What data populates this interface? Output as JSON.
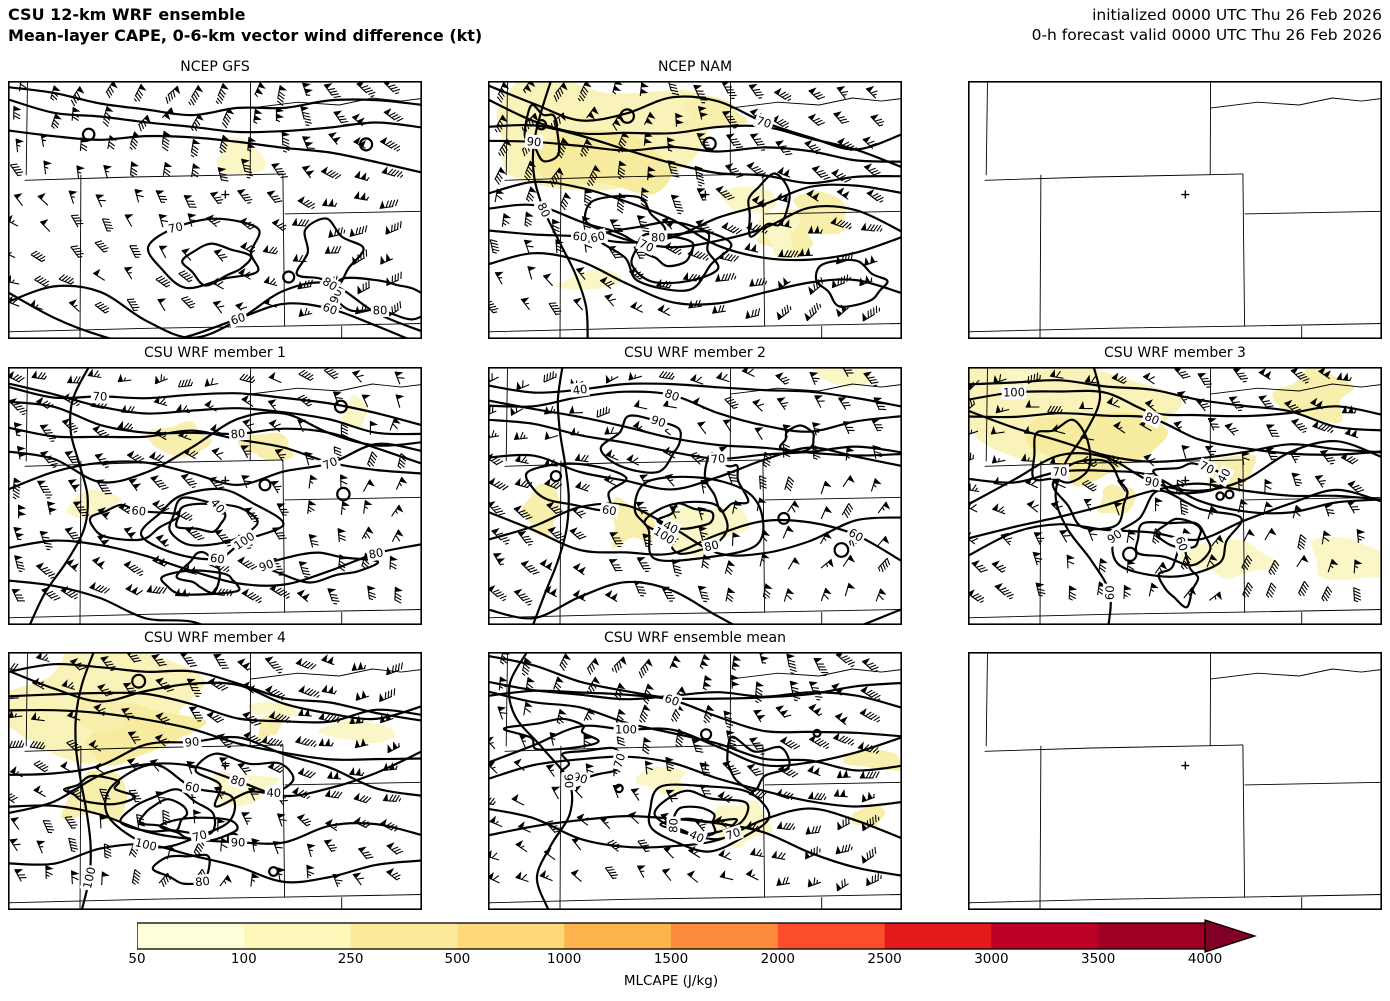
{
  "header": {
    "title_line1": "CSU 12-km WRF ensemble",
    "title_line2": "Mean-layer CAPE, 0-6-km vector wind difference (kt)",
    "init_line": "initialized 0000 UTC Thu 26 Feb 2026",
    "valid_line": "0-h forecast valid 0000 UTC Thu 26 Feb 2026"
  },
  "panels": [
    {
      "title": "NCEP GFS",
      "type": "filled",
      "complexity": "low",
      "shading": "light",
      "contour_labels": [
        90,
        70,
        80,
        60,
        60,
        80
      ]
    },
    {
      "title": "NCEP NAM",
      "type": "filled",
      "complexity": "high",
      "shading": "heavy",
      "contour_labels": [
        80,
        70,
        60,
        90,
        80,
        60,
        70
      ]
    },
    {
      "title": "",
      "type": "empty"
    },
    {
      "title": "CSU WRF member 1",
      "type": "filled",
      "complexity": "high",
      "shading": "medium",
      "contour_labels": [
        40,
        40,
        80,
        70,
        90,
        60,
        100,
        70,
        80,
        60
      ]
    },
    {
      "title": "CSU WRF member 2",
      "type": "filled",
      "complexity": "high",
      "shading": "medium",
      "contour_labels": [
        40,
        40,
        80,
        70,
        90,
        60,
        100,
        80,
        60
      ]
    },
    {
      "title": "CSU WRF member 3",
      "type": "filled",
      "complexity": "high",
      "shading": "heavy",
      "contour_labels": [
        40,
        70,
        90,
        100,
        60,
        80,
        90,
        60,
        70
      ]
    },
    {
      "title": "CSU WRF member 4",
      "type": "filled",
      "complexity": "high",
      "shading": "heavy",
      "contour_labels": [
        70,
        90,
        40,
        100,
        60,
        80,
        90,
        100,
        80
      ]
    },
    {
      "title": "CSU WRF ensemble mean",
      "type": "filled",
      "complexity": "high",
      "shading": "medium",
      "contour_labels": [
        40,
        90,
        100,
        70,
        60,
        80,
        90,
        70
      ]
    },
    {
      "title": "",
      "type": "empty"
    }
  ],
  "colorbar": {
    "label": "MLCAPE (J/kg)",
    "ticks": [
      "50",
      "100",
      "250",
      "500",
      "1000",
      "1500",
      "2000",
      "2500",
      "3000",
      "3500",
      "4000"
    ],
    "colors": [
      "#ffffd9",
      "#fff7b9",
      "#feea9b",
      "#fed97a",
      "#feb24c",
      "#fd8d3c",
      "#fc4e2a",
      "#e31a1c",
      "#bd0026",
      "#a00026"
    ],
    "arrow_color": "#800026"
  },
  "chart_data": {
    "type": "heatmap",
    "title": "CSU 12-km WRF ensemble — Mean-layer CAPE, 0-6-km vector wind difference (kt)",
    "initialized": "0000 UTC Thu 26 Feb 2026",
    "valid": "0000 UTC Thu 26 Feb 2026",
    "forecast_hour": 0,
    "grid": {
      "rows": 3,
      "cols": 3
    },
    "panels": [
      "NCEP GFS",
      "NCEP NAM",
      "",
      "CSU WRF member 1",
      "CSU WRF member 2",
      "CSU WRF member 3",
      "CSU WRF member 4",
      "CSU WRF ensemble mean",
      ""
    ],
    "fill_field": {
      "name": "MLCAPE",
      "units": "J/kg",
      "levels": [
        50,
        100,
        250,
        500,
        1000,
        1500,
        2000,
        2500,
        3000,
        3500,
        4000
      ],
      "colormap": "YlOrRd",
      "extend": "max"
    },
    "contour_field": {
      "name": "0-6-km vector wind difference",
      "units": "kt",
      "visible_contour_labels": [
        40,
        60,
        70,
        80,
        90,
        100
      ]
    },
    "wind_symbols": "wind barbs with flags (speeds roughly 40-110 kt)",
    "legend_position": "bottom"
  }
}
